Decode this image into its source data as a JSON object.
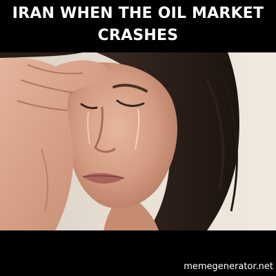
{
  "meme": {
    "caption_lines": [
      "IRAN WHEN THE OIL MARKET",
      "CRASHES"
    ],
    "watermark": "memegenerator.net",
    "photo_icon": "crying-woman-photo"
  },
  "colors": {
    "background": "#000000",
    "text": "#ffffff",
    "skin": "#d7a58c",
    "hair": "#2a1d17",
    "wall": "#e7dfd3"
  }
}
